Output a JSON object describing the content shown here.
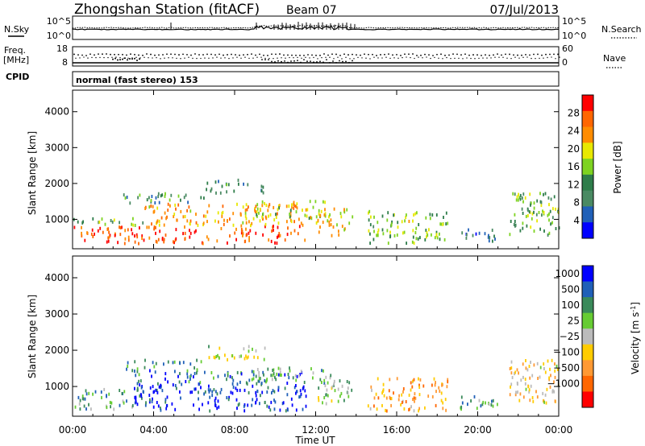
{
  "header": {
    "title": "Zhongshan Station (fitACF)",
    "beam": "Beam 07",
    "date": "07/Jul/2013",
    "mode": "normal (fast stereo) 153"
  },
  "top_panels": {
    "nsky_label": "N.Sky",
    "nsky_ticks": [
      "10^5",
      "10^0"
    ],
    "nsearch_label": "N.Search",
    "nsearch_ticks": [
      "10^5",
      "10^0"
    ],
    "freq_label_1": "Freq.",
    "freq_label_2": "[MHz]",
    "freq_ticks": [
      "18",
      "8"
    ],
    "nave_label": "Nave",
    "nave_ticks": [
      "60",
      "0"
    ],
    "cpid_label": "CPID"
  },
  "colors": {
    "power": [
      "#0000ff",
      "#2060b8",
      "#4a8a63",
      "#2e7d4a",
      "#7ed321",
      "#e8e800",
      "#ff8c00",
      "#ff6600",
      "#ff0000"
    ],
    "velocity": [
      "#0000ff",
      "#2060b8",
      "#3a8a5a",
      "#66cc33",
      "#bbbbbb",
      "#ffcc00",
      "#ff9933",
      "#ff6600",
      "#ff0000"
    ]
  },
  "chart_data": [
    {
      "type": "heatmap",
      "name": "power-panel",
      "ylabel": "Slant Range [km]",
      "xlabel": "",
      "ylim": [
        180,
        4600
      ],
      "xlim": [
        0,
        24
      ],
      "y_ticks": [
        1000,
        2000,
        3000,
        4000
      ],
      "colorbar_label": "Power [dB]",
      "colorbar_ticks": [
        4,
        8,
        12,
        16,
        20,
        24,
        28
      ],
      "colorbar_range": [
        0,
        32
      ],
      "regions": [
        {
          "t0": 0.0,
          "t1": 11.5,
          "r0": 300,
          "r1": 800,
          "level": 0.85
        },
        {
          "t0": 0.0,
          "t1": 3.5,
          "r0": 800,
          "r1": 1000,
          "level": 0.45
        },
        {
          "t0": 3.5,
          "t1": 11.5,
          "r0": 800,
          "r1": 1400,
          "level": 0.7
        },
        {
          "t0": 2.5,
          "t1": 6.5,
          "r0": 1400,
          "r1": 1700,
          "level": 0.35
        },
        {
          "t0": 6.5,
          "t1": 9.5,
          "r0": 1700,
          "r1": 2100,
          "level": 0.3
        },
        {
          "t0": 9.0,
          "t1": 12.5,
          "r0": 1000,
          "r1": 1500,
          "level": 0.55
        },
        {
          "t0": 12.0,
          "t1": 13.8,
          "r0": 500,
          "r1": 1300,
          "level": 0.6
        },
        {
          "t0": 14.5,
          "t1": 18.5,
          "r0": 300,
          "r1": 1200,
          "level": 0.5
        },
        {
          "t0": 19.0,
          "t1": 21.0,
          "r0": 350,
          "r1": 700,
          "level": 0.2
        },
        {
          "t0": 21.5,
          "t1": 24.0,
          "r0": 500,
          "r1": 1700,
          "level": 0.45
        }
      ]
    },
    {
      "type": "heatmap",
      "name": "velocity-panel",
      "ylabel": "Slant Range [km]",
      "xlabel": "Time UT",
      "ylim": [
        180,
        4600
      ],
      "xlim": [
        0,
        24
      ],
      "y_ticks": [
        1000,
        2000,
        3000,
        4000
      ],
      "x_ticks": [
        "00:00",
        "04:00",
        "08:00",
        "12:00",
        "16:00",
        "20:00",
        "00:00"
      ],
      "x_tick_values": [
        0,
        4,
        8,
        12,
        16,
        20,
        24
      ],
      "colorbar_label": "Velocity [m s^-1]",
      "colorbar_ticks": [
        "1000",
        "500",
        "100",
        "25",
        "−25",
        "−100",
        "−500",
        "−1000"
      ],
      "regions": [
        {
          "t0": 0.0,
          "t1": 3.0,
          "r0": 300,
          "r1": 900,
          "level": 0.3
        },
        {
          "t0": 3.0,
          "t1": 11.5,
          "r0": 300,
          "r1": 1000,
          "level": 0.12
        },
        {
          "t0": 3.0,
          "t1": 11.5,
          "r0": 1000,
          "r1": 1400,
          "level": 0.2
        },
        {
          "t0": 2.5,
          "t1": 6.5,
          "r0": 1400,
          "r1": 1700,
          "level": 0.25
        },
        {
          "t0": 6.5,
          "t1": 9.5,
          "r0": 1700,
          "r1": 2100,
          "level": 0.5
        },
        {
          "t0": 9.0,
          "t1": 12.5,
          "r0": 1000,
          "r1": 1500,
          "level": 0.35
        },
        {
          "t0": 12.0,
          "t1": 13.8,
          "r0": 500,
          "r1": 1300,
          "level": 0.4
        },
        {
          "t0": 14.5,
          "t1": 18.5,
          "r0": 300,
          "r1": 1200,
          "level": 0.7
        },
        {
          "t0": 19.0,
          "t1": 21.0,
          "r0": 350,
          "r1": 700,
          "level": 0.3
        },
        {
          "t0": 21.5,
          "t1": 24.0,
          "r0": 500,
          "r1": 1700,
          "level": 0.6
        }
      ]
    }
  ]
}
